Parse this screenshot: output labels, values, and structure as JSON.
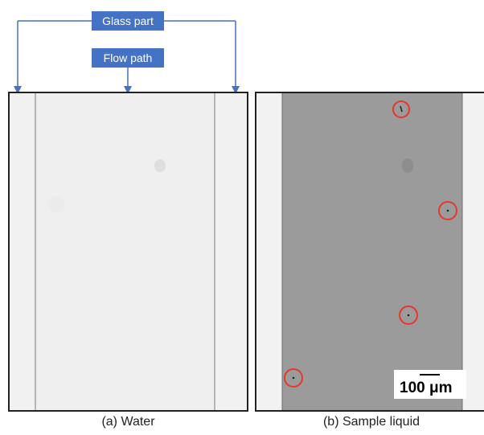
{
  "labels": {
    "glass_part": "Glass part",
    "flow_path": "Flow path"
  },
  "panels": {
    "a_caption": "(a) Water",
    "b_caption": "(b) Sample liquid"
  },
  "scale_bar": {
    "text": "100 μm"
  },
  "colors": {
    "label_fill": "#4472c4",
    "arrow": "#4472c4",
    "marker_circle": "#e8362a",
    "glass_region": "#f2f2f2",
    "water_channel": "#efefef",
    "sample_channel": "#9b9b9b"
  },
  "markers": {
    "count": 4
  }
}
